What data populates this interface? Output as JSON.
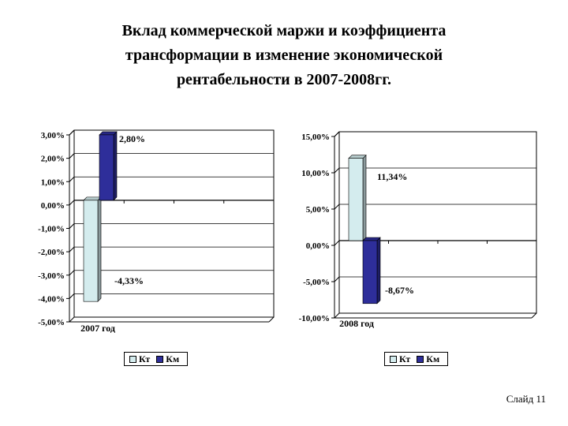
{
  "title_lines": [
    "Вклад коммерческой маржи и коэффициента",
    "трансформации в изменение экономической",
    "рентабельности в 2007-2008гг."
  ],
  "slide_label": "Слайд 11",
  "colors": {
    "kt": "#d4ecee",
    "km": "#2e2e9a",
    "grid": "#000000"
  },
  "chart_data": [
    {
      "type": "bar",
      "categories": [
        "2007 год"
      ],
      "series": [
        {
          "name": "Кт",
          "values": [
            -4.33
          ],
          "label": "-4,33%"
        },
        {
          "name": "Км",
          "values": [
            2.8
          ],
          "label": "2,80%"
        }
      ],
      "ylim": [
        -5,
        3
      ],
      "yticks": [
        3,
        2,
        1,
        0,
        -1,
        -2,
        -3,
        -4,
        -5
      ],
      "ytick_labels": [
        "3,00%",
        "2,00%",
        "1,00%",
        "0,00%",
        "-1,00%",
        "-2,00%",
        "-3,00%",
        "-4,00%",
        "-5,00%"
      ],
      "legend": [
        "Кт",
        "Км"
      ],
      "legend_position": "bottom",
      "grid": true
    },
    {
      "type": "bar",
      "categories": [
        "2008 год"
      ],
      "series": [
        {
          "name": "Кт",
          "values": [
            11.34
          ],
          "label": "11,34%"
        },
        {
          "name": "Км",
          "values": [
            -8.67
          ],
          "label": "-8,67%"
        }
      ],
      "ylim": [
        -10,
        15
      ],
      "yticks": [
        15,
        10,
        5,
        0,
        -5,
        -10
      ],
      "ytick_labels": [
        "15,00%",
        "10,00%",
        "5,00%",
        "0,00%",
        "-5,00%",
        "-10,00%"
      ],
      "legend": [
        "Кт",
        "Км"
      ],
      "legend_position": "bottom",
      "grid": true
    }
  ]
}
